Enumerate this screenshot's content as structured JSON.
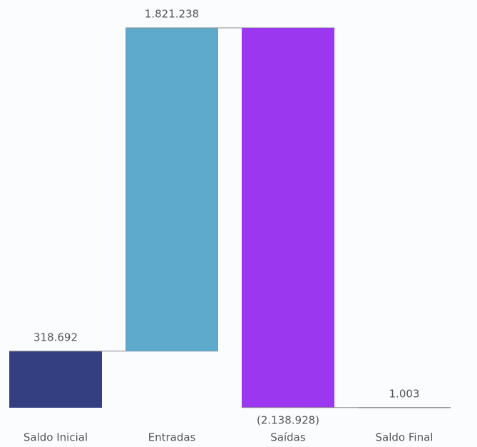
{
  "chart_data": {
    "type": "waterfall",
    "categories": [
      "Saldo Inicial",
      "Entradas",
      "Saídas",
      "Saldo Final"
    ],
    "values": [
      318692,
      1821238,
      -2138928,
      1003
    ],
    "value_labels": [
      "318.692",
      "1.821.238",
      "(2.138.928)",
      "1.003"
    ],
    "totals": [
      true,
      false,
      false,
      true
    ],
    "colors": [
      "#333f80",
      "#5eaacc",
      "#9b37ee",
      "#333f80"
    ],
    "connector_color": "#8a8a8a"
  }
}
